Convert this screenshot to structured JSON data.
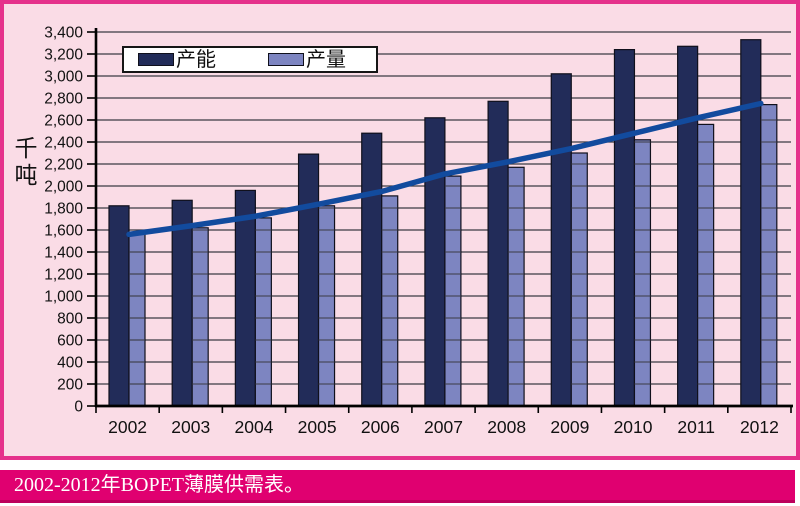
{
  "caption": {
    "text": "2002-2012年BOPET薄膜供需表。"
  },
  "y_axis_title": "千吨",
  "legend": {
    "items": [
      {
        "label": "产能",
        "color": "#222c59"
      },
      {
        "label": "产量",
        "color": "#7d85c1"
      }
    ]
  },
  "colors": {
    "background_pink": "#fadce6",
    "frame_magenta": "#e5318b",
    "caption_bar": "#e00070",
    "caption_bar_edge": "#bd005c",
    "capacity_bar": "#222c59",
    "production_bar": "#7d85c1",
    "bar_outline": "#10101c",
    "trend_line": "#124b9e",
    "gridline": "#3b3b43",
    "axis": "#000000",
    "text": "#111111"
  },
  "chart_data": {
    "type": "bar",
    "title": "2002-2012年BOPET薄膜供需表。",
    "categories": [
      "2002",
      "2003",
      "2004",
      "2005",
      "2006",
      "2007",
      "2008",
      "2009",
      "2010",
      "2011",
      "2012"
    ],
    "series": [
      {
        "name": "产能",
        "color": "#222c59",
        "values": [
          1820,
          1870,
          1960,
          2290,
          2480,
          2620,
          2770,
          3020,
          3240,
          3270,
          3330
        ]
      },
      {
        "name": "产量",
        "color": "#7d85c1",
        "values": [
          1570,
          1620,
          1710,
          1820,
          1910,
          2090,
          2170,
          2300,
          2420,
          2560,
          2740
        ]
      }
    ],
    "trendline": {
      "color": "#124b9e",
      "values": [
        1560,
        1640,
        1725,
        1835,
        1950,
        2110,
        2220,
        2340,
        2480,
        2620,
        2750
      ]
    },
    "xlabel": "",
    "ylabel": "千吨",
    "ylim": [
      0,
      3400
    ],
    "ytick_step": 200,
    "y_tick_labels": [
      "0",
      "200",
      "400",
      "600",
      "800",
      "1,000",
      "1,200",
      "1,400",
      "1,600",
      "1,800",
      "2,000",
      "2,200",
      "2,400",
      "2,600",
      "2,800",
      "3,000",
      "3,200",
      "3,400"
    ],
    "grid": true,
    "legend_position": "top-inside"
  }
}
